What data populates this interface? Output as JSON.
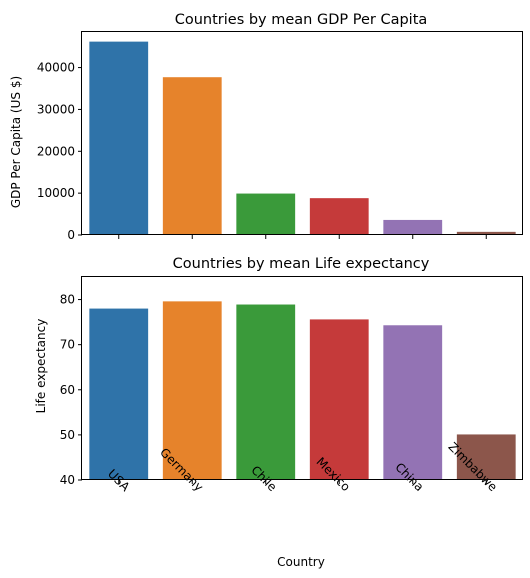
{
  "chart_data": [
    {
      "type": "bar",
      "title": "Countries by mean GDP Per Capita",
      "xlabel": "",
      "ylabel": "GDP Per Capita (US $)",
      "categories": [
        "USA",
        "Germany",
        "Chile",
        "Mexico",
        "China",
        "Zimbabwe"
      ],
      "values": [
        46200,
        37700,
        9900,
        8800,
        3600,
        750
      ],
      "ylim": [
        0,
        48500
      ],
      "yticks": [
        0,
        10000,
        20000,
        30000,
        40000
      ],
      "show_xticklabels": false,
      "grid": false,
      "colors": [
        "#2f73a9",
        "#e6832b",
        "#3a9a3a",
        "#c53a3a",
        "#9373b4",
        "#8c564b"
      ]
    },
    {
      "type": "bar",
      "title": "Countries by mean Life expectancy",
      "xlabel": "Country",
      "ylabel": "Life expectancy",
      "categories": [
        "USA",
        "Germany",
        "Chile",
        "Mexico",
        "China",
        "Zimbabwe"
      ],
      "values": [
        78.0,
        79.6,
        78.9,
        75.6,
        74.3,
        50.1
      ],
      "ylim": [
        40,
        85
      ],
      "yticks": [
        40,
        50,
        60,
        70,
        80
      ],
      "show_xticklabels": true,
      "grid": false,
      "colors": [
        "#2f73a9",
        "#e6832b",
        "#3a9a3a",
        "#c53a3a",
        "#9373b4",
        "#8c564b"
      ]
    }
  ]
}
